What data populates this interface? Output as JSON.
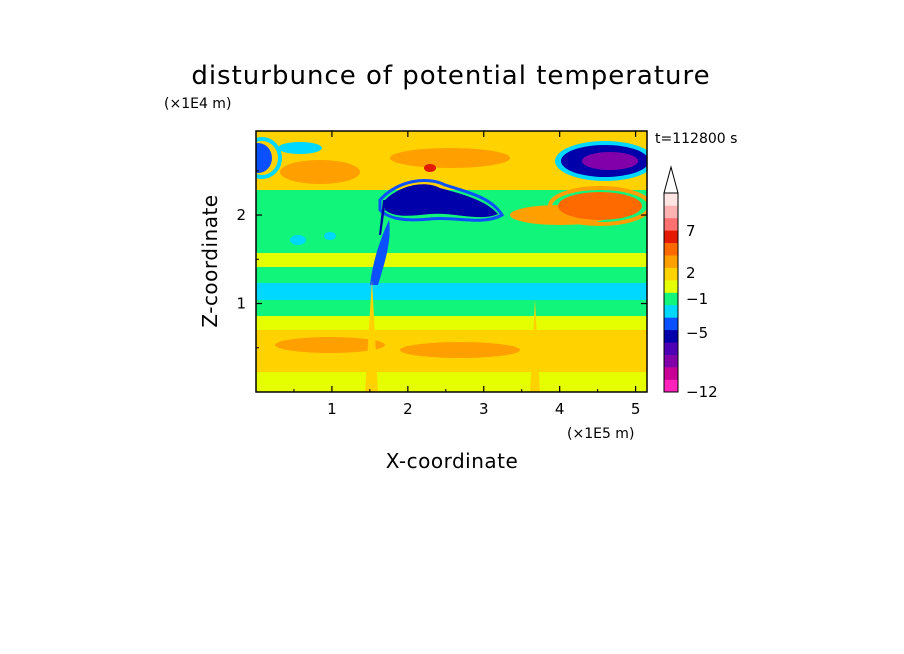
{
  "chart_data": {
    "type": "heatmap",
    "title": "disturbunce of potential temperature",
    "xlabel": "X-coordinate",
    "ylabel": "Z-coordinate",
    "x_unit": "(×1E5 m)",
    "y_unit": "(×1E4 m)",
    "time_label": "t=112800 s",
    "xlim": [
      0,
      5.15
    ],
    "ylim": [
      0,
      2.95
    ],
    "x_ticks": [
      "1",
      "2",
      "3",
      "4",
      "5"
    ],
    "y_ticks": [
      "1",
      "2"
    ],
    "colorbar": {
      "tick_labels": [
        "7",
        "2",
        "−1",
        "−5",
        "−12"
      ],
      "colors": [
        "#ff22bb",
        "#c80096",
        "#8200aa",
        "#4d00b4",
        "#0000aa",
        "#0a50ff",
        "#00d8ff",
        "#11f57a",
        "#e6ff00",
        "#ffd200",
        "#ffa000",
        "#ff6a00",
        "#e41a00",
        "#ff7070",
        "#ffb2b2",
        "#ffe4e4"
      ],
      "extend": "max"
    }
  }
}
